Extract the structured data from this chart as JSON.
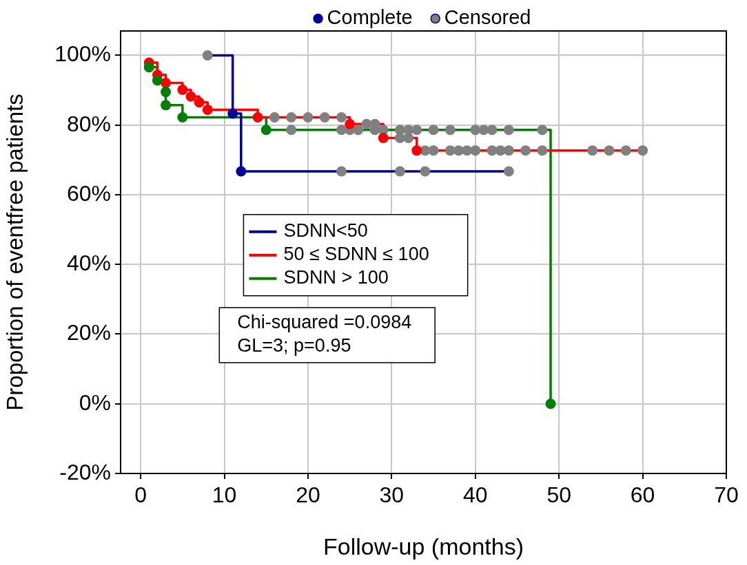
{
  "chart_data": {
    "type": "step",
    "xlabel": "Follow-up (months)",
    "ylabel": "Proportion of eventfree patients",
    "xlim": [
      -2.4,
      70
    ],
    "xticks": [
      0,
      10,
      20,
      30,
      40,
      50,
      60,
      70
    ],
    "ylim": [
      -20,
      107
    ],
    "yticks": [
      {
        "value": -20,
        "label": "-20%"
      },
      {
        "value": 0,
        "label": "0%"
      },
      {
        "value": 20,
        "label": "20%"
      },
      {
        "value": 40,
        "label": "40%"
      },
      {
        "value": 60,
        "label": "60%"
      },
      {
        "value": 80,
        "label": "80%"
      },
      {
        "value": 100,
        "label": "100%"
      }
    ],
    "grid": true,
    "legend": "top",
    "line_style": "solid",
    "annotations": [
      "Chi-squared =0.0984",
      "GL=3; p=0.95"
    ],
    "series": [
      {
        "name": "SDNN<50",
        "color": "#000099",
        "x": [
          8,
          11,
          12,
          44
        ],
        "values": [
          100,
          83.3,
          66.7,
          66.7
        ]
      },
      {
        "name": "50 ≤ SDNN ≤ 100",
        "color": "#ff0000",
        "x": [
          1,
          2,
          3,
          5,
          6,
          7,
          8,
          14,
          25,
          29,
          33,
          60
        ],
        "values": [
          97.9,
          94.4,
          92.1,
          90.1,
          88.2,
          86.5,
          84.4,
          82.2,
          80.3,
          76.3,
          72.7,
          72.7
        ]
      },
      {
        "name": "SDNN > 100",
        "color": "#008000",
        "x": [
          1,
          2,
          3,
          3,
          5,
          15,
          49
        ],
        "values": [
          96.6,
          92.8,
          89.5,
          85.7,
          82.2,
          78.6,
          0
        ]
      },
      {
        "name": "Complete",
        "type": "scatter",
        "color": "#000099",
        "x": [
          11,
          12,
          1,
          2,
          3,
          5,
          6,
          7,
          8,
          14,
          25,
          29,
          33,
          1,
          2,
          3,
          3,
          5,
          15,
          49
        ],
        "values": [
          83.3,
          66.7,
          97.9,
          94.4,
          92.1,
          90.1,
          88.2,
          86.5,
          84.4,
          82.2,
          80.3,
          76.3,
          72.7,
          96.6,
          92.8,
          89.5,
          85.7,
          82.2,
          78.6,
          0
        ],
        "colors": [
          "#000099",
          "#000099",
          "#ff0000",
          "#ff0000",
          "#ff0000",
          "#ff0000",
          "#ff0000",
          "#ff0000",
          "#ff0000",
          "#ff0000",
          "#ff0000",
          "#ff0000",
          "#ff0000",
          "#008000",
          "#008000",
          "#008000",
          "#008000",
          "#008000",
          "#008000",
          "#008000"
        ]
      },
      {
        "name": "Censored",
        "type": "scatter",
        "color": "#808080",
        "x": [
          8,
          24,
          31,
          34,
          44,
          16,
          18,
          20,
          22,
          24,
          27,
          28,
          31,
          32,
          34,
          35,
          37,
          38,
          39,
          40,
          42,
          43,
          44,
          46,
          48,
          54,
          56,
          58,
          60,
          18,
          24,
          25,
          26,
          28,
          29,
          31,
          32,
          33,
          35,
          37,
          40,
          41,
          42,
          44,
          48
        ],
        "values": [
          100,
          66.7,
          66.7,
          66.7,
          66.7,
          82.2,
          82.2,
          82.2,
          82.2,
          82.2,
          80.3,
          80.3,
          76.3,
          76.3,
          72.7,
          72.7,
          72.7,
          72.7,
          72.7,
          72.7,
          72.7,
          72.7,
          72.7,
          72.7,
          72.7,
          72.7,
          72.7,
          72.7,
          72.7,
          78.6,
          78.6,
          78.6,
          78.6,
          78.6,
          78.6,
          78.6,
          78.6,
          78.6,
          78.6,
          78.6,
          78.6,
          78.6,
          78.6,
          78.6,
          78.6
        ]
      }
    ]
  }
}
